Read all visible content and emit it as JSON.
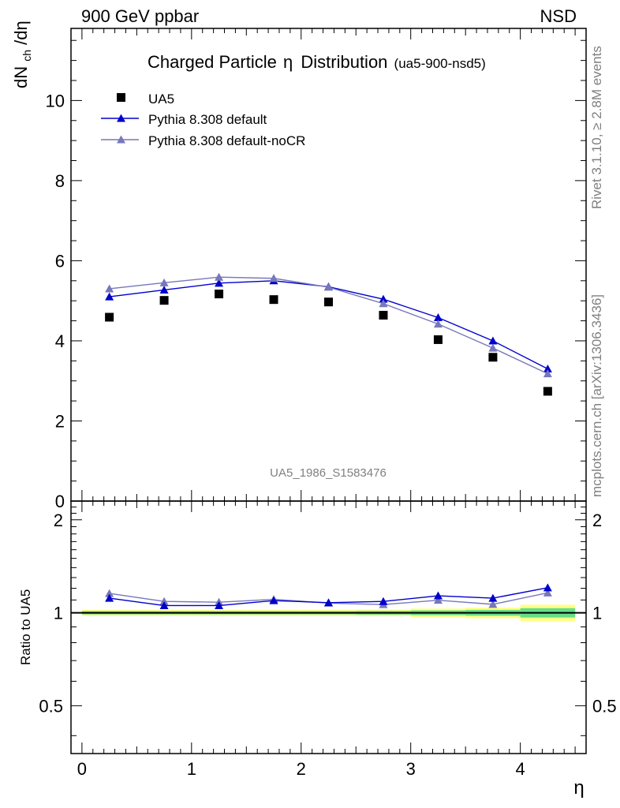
{
  "header": {
    "energy_label": "900 GeV ppbar",
    "process_label": "NSD"
  },
  "side_text": {
    "rivet": "Rivet 3.1.10, ≥ 2.8M events",
    "mcplots": "mcplots.cern.ch [arXiv:1306.3436]"
  },
  "chart_data": [
    {
      "type": "scatter",
      "title": "Charged Particle",
      "title_symbol": "η",
      "title_suffix": "Distribution",
      "subtitle": "(ua5-900-nsd5)",
      "ylabel_main": "dN",
      "ylabel_sub": "ch",
      "ylabel_tail": "/dη",
      "watermark": "UA5_1986_S1583476",
      "xlim": [
        -0.1,
        4.6
      ],
      "ylim": [
        0,
        11.8
      ],
      "y_ticks": [
        "0",
        "2",
        "4",
        "6",
        "8",
        "10"
      ],
      "legend_position": "top-left",
      "x": [
        0.25,
        0.75,
        1.25,
        1.75,
        2.25,
        2.75,
        3.25,
        3.75,
        4.25
      ],
      "series": [
        {
          "name": "UA5",
          "marker": "square",
          "color": "#000000",
          "values": [
            4.59,
            5.01,
            5.17,
            5.03,
            4.97,
            4.64,
            4.03,
            3.59,
            2.74
          ]
        },
        {
          "name": "Pythia 8.308 default",
          "marker": "triangle",
          "color": "#0000cc",
          "values": [
            5.1,
            5.27,
            5.44,
            5.5,
            5.35,
            5.04,
            4.58,
            4.0,
            3.3
          ]
        },
        {
          "name": "Pythia 8.308 default-noCR",
          "marker": "triangle",
          "color": "#7777bb",
          "values": [
            5.3,
            5.45,
            5.59,
            5.56,
            5.34,
            4.93,
            4.42,
            3.82,
            3.18
          ]
        }
      ]
    },
    {
      "type": "scatter",
      "ylabel": "Ratio to UA5",
      "xlabel": "η",
      "xlim": [
        -0.1,
        4.6
      ],
      "ylim": [
        0.35,
        2.3
      ],
      "x_ticks": [
        "0",
        "1",
        "2",
        "3",
        "4"
      ],
      "y_ticks": [
        "0.5",
        "1",
        "2"
      ],
      "x": [
        0.25,
        0.75,
        1.25,
        1.75,
        2.25,
        2.75,
        3.25,
        3.75,
        4.25
      ],
      "bands": {
        "x_edges": [
          0.0,
          0.5,
          1.0,
          1.5,
          2.0,
          2.5,
          3.0,
          3.5,
          4.0,
          4.5
        ],
        "stat_halfwidth": [
          0.012,
          0.012,
          0.012,
          0.012,
          0.012,
          0.014,
          0.018,
          0.022,
          0.035
        ],
        "total_halfwidth": [
          0.022,
          0.022,
          0.022,
          0.022,
          0.022,
          0.024,
          0.032,
          0.04,
          0.062
        ],
        "stat_color": "#66dd88",
        "total_color": "#ffff88"
      },
      "series": [
        {
          "name": "Pythia 8.308 default",
          "color": "#0000cc",
          "values": [
            1.115,
            1.055,
            1.055,
            1.095,
            1.078,
            1.088,
            1.135,
            1.115,
            1.205
          ]
        },
        {
          "name": "Pythia 8.308 default-noCR",
          "color": "#7777bb",
          "values": [
            1.155,
            1.088,
            1.082,
            1.105,
            1.075,
            1.063,
            1.098,
            1.065,
            1.16
          ]
        }
      ]
    }
  ]
}
